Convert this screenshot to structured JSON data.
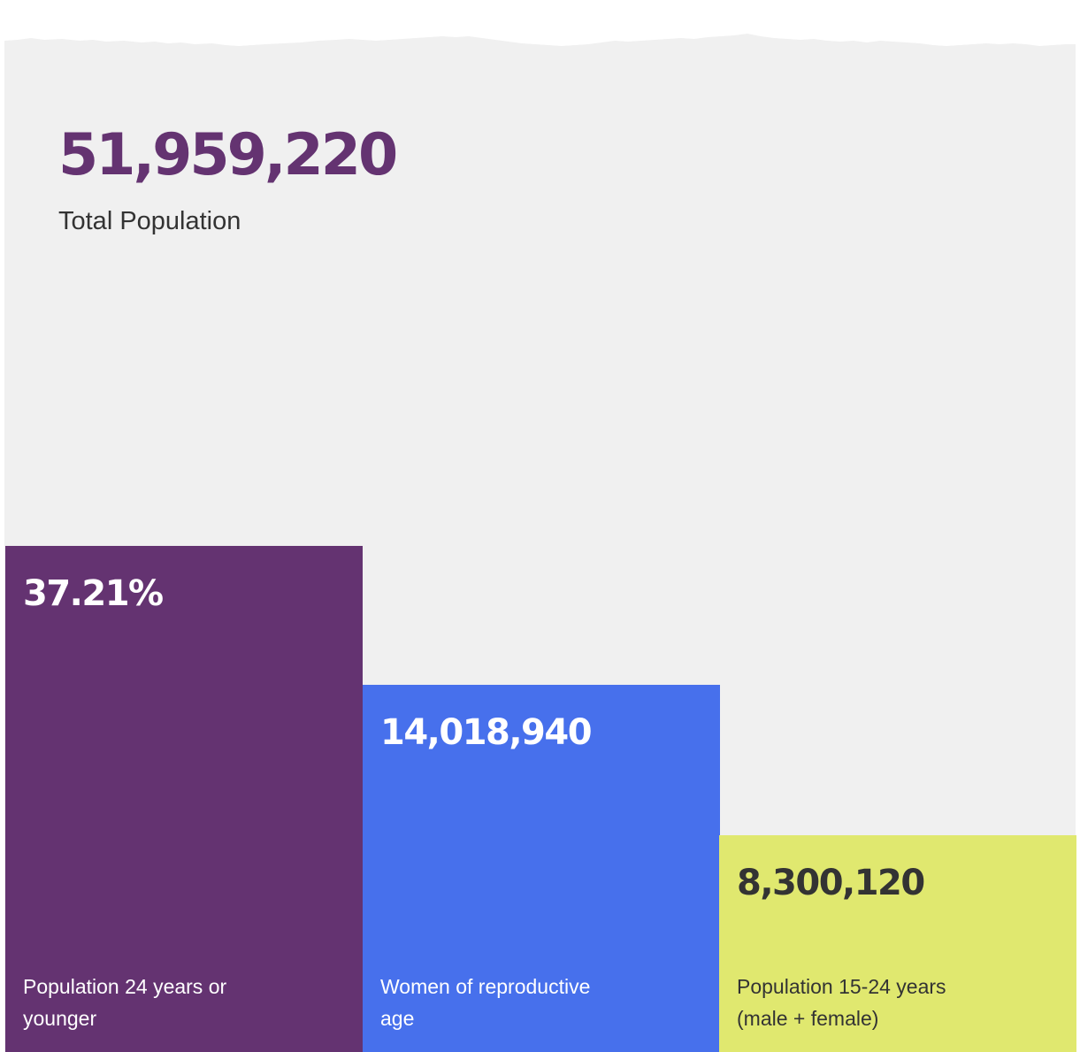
{
  "colors": {
    "page_background": "#ffffff",
    "panel_background": "#f0f0f0",
    "purple": "#643371",
    "blue": "#4770ec",
    "lime": "#e0e86f",
    "dark_text": "#333333"
  },
  "headline": {
    "value": "51,959,220",
    "label": "Total Population"
  },
  "chart_data": {
    "type": "bar",
    "title": "",
    "xlabel": "",
    "ylabel": "",
    "grid": false,
    "categories": [
      "Population 24 years or younger",
      "Women of reproductive age",
      "Population 15-24 years (male + female)"
    ],
    "displayed_values": [
      "37.21%",
      "14,018,940",
      "8,300,120"
    ],
    "values": [
      37.21,
      26.98,
      15.97
    ],
    "value_unit": "percent of total population",
    "ylim": [
      0,
      100
    ],
    "bar_colors": [
      "#643371",
      "#4770ec",
      "#e0e86f"
    ],
    "text_colors": [
      "#ffffff",
      "#ffffff",
      "#333333"
    ]
  }
}
